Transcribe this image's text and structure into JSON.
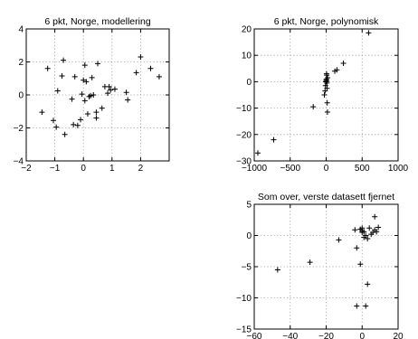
{
  "chart_data": [
    {
      "type": "scatter",
      "title": "6 pkt, Norge, modellering",
      "xlim": [
        -2,
        3
      ],
      "ylim": [
        -4,
        4
      ],
      "xticks": [
        -2,
        -1,
        0,
        1,
        2
      ],
      "yticks": [
        -4,
        -2,
        0,
        2,
        4
      ],
      "xtick_labels": [
        "−2",
        "−1",
        "0",
        "1",
        "2"
      ],
      "ytick_labels": [
        "−4",
        "−2",
        "0",
        "2",
        "4"
      ],
      "grid": true,
      "marker": "+",
      "points": [
        [
          -1.45,
          -1.05
        ],
        [
          -1.25,
          1.6
        ],
        [
          -1.05,
          -1.55
        ],
        [
          -0.95,
          -1.95
        ],
        [
          -0.9,
          0.25
        ],
        [
          -0.75,
          1.15
        ],
        [
          -0.7,
          2.1
        ],
        [
          -0.65,
          -2.4
        ],
        [
          -0.4,
          -0.25
        ],
        [
          -0.35,
          -1.8
        ],
        [
          -0.3,
          1.1
        ],
        [
          -0.2,
          -1.85
        ],
        [
          -0.1,
          -1.5
        ],
        [
          -0.05,
          0.05
        ],
        [
          0.0,
          0.9
        ],
        [
          0.05,
          -0.35
        ],
        [
          0.05,
          1.8
        ],
        [
          0.1,
          0.8
        ],
        [
          0.15,
          -1.15
        ],
        [
          0.2,
          -0.1
        ],
        [
          0.25,
          -0.05
        ],
        [
          0.3,
          1.05
        ],
        [
          0.35,
          0.0
        ],
        [
          0.45,
          -1.05
        ],
        [
          0.45,
          -1.4
        ],
        [
          0.5,
          1.9
        ],
        [
          0.65,
          -0.8
        ],
        [
          0.75,
          0.5
        ],
        [
          0.85,
          0.1
        ],
        [
          0.9,
          0.5
        ],
        [
          0.95,
          0.3
        ],
        [
          1.1,
          0.35
        ],
        [
          1.5,
          0.15
        ],
        [
          1.55,
          -0.3
        ],
        [
          1.85,
          1.35
        ],
        [
          2.0,
          2.3
        ],
        [
          2.35,
          1.6
        ],
        [
          2.65,
          1.1
        ]
      ]
    },
    {
      "type": "scatter",
      "title": "6 pkt, Norge, polynomisk",
      "xlim": [
        -1000,
        1000
      ],
      "ylim": [
        -30,
        20
      ],
      "xticks": [
        -1000,
        -500,
        0,
        500,
        1000
      ],
      "yticks": [
        -30,
        -20,
        -10,
        0,
        10,
        20
      ],
      "xtick_labels": [
        "−1000",
        "−500",
        "0",
        "500",
        "1000"
      ],
      "ytick_labels": [
        "−30",
        "−20",
        "−10",
        "0",
        "10",
        "20"
      ],
      "grid": true,
      "marker": "+",
      "points": [
        [
          -950,
          -27
        ],
        [
          -730,
          -22
        ],
        [
          -180,
          -9.5
        ],
        [
          -25,
          -5
        ],
        [
          -15,
          -3.5
        ],
        [
          -10,
          -1.5
        ],
        [
          -5,
          0
        ],
        [
          0,
          0.5
        ],
        [
          3,
          1
        ],
        [
          6,
          0.2
        ],
        [
          8,
          2.5
        ],
        [
          10,
          -0.5
        ],
        [
          12,
          -2.5
        ],
        [
          15,
          -8
        ],
        [
          18,
          -11.5
        ],
        [
          20,
          1.5
        ],
        [
          5,
          3
        ],
        [
          120,
          4
        ],
        [
          150,
          4.5
        ],
        [
          240,
          7
        ],
        [
          590,
          18.5
        ]
      ]
    },
    {
      "type": "scatter",
      "title": "Som over, verste datasett fjernet",
      "xlim": [
        -60,
        20
      ],
      "ylim": [
        -15,
        5
      ],
      "xticks": [
        -60,
        -40,
        -20,
        0,
        20
      ],
      "yticks": [
        -15,
        -10,
        -5,
        0,
        5
      ],
      "xtick_labels": [
        "−60",
        "−40",
        "−20",
        "0",
        "20"
      ],
      "ytick_labels": [
        "−15",
        "−10",
        "−5",
        "0",
        "5"
      ],
      "grid": true,
      "marker": "+",
      "points": [
        [
          -47,
          -5.5
        ],
        [
          -29,
          -4.3
        ],
        [
          -13,
          -0.7
        ],
        [
          -4,
          0.9
        ],
        [
          -3,
          -2.0
        ],
        [
          -3,
          -11.3
        ],
        [
          -1,
          1.0
        ],
        [
          -1,
          -4.6
        ],
        [
          0,
          0.5
        ],
        [
          0,
          0.8
        ],
        [
          0,
          1.2
        ],
        [
          1,
          -0.3
        ],
        [
          1,
          0.6
        ],
        [
          2,
          0.0
        ],
        [
          2,
          -11.3
        ],
        [
          3,
          -7.8
        ],
        [
          3,
          -0.5
        ],
        [
          4,
          1.2
        ],
        [
          5,
          0.2
        ],
        [
          6,
          0.5
        ],
        [
          7,
          3.0
        ],
        [
          8,
          0.6
        ],
        [
          9,
          1.3
        ],
        [
          7,
          0.9
        ]
      ]
    }
  ]
}
